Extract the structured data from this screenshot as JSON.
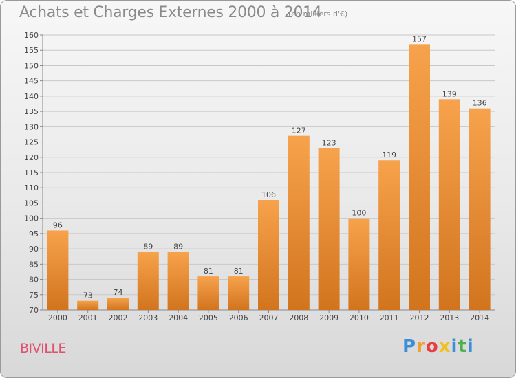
{
  "header": {
    "title": "Achats et Charges Externes 2000 à 2014",
    "unit": "(en milliers d'€)"
  },
  "footer": {
    "commune": "BIVILLE",
    "brand": "Proxiti",
    "brand_letters": [
      {
        "ch": "P",
        "color": "#3a8fd8"
      },
      {
        "ch": "r",
        "color": "#f0a030"
      },
      {
        "ch": "o",
        "color": "#e84040"
      },
      {
        "ch": "x",
        "color": "#f0c020"
      },
      {
        "ch": "i",
        "color": "#3a8fd8"
      },
      {
        "ch": "t",
        "color": "#50b050"
      },
      {
        "ch": "i",
        "color": "#3a8fd8"
      }
    ]
  },
  "colors": {
    "bar_light": "#f7a24c",
    "bar_dark": "#d2741e",
    "grid": "#c8c8c8",
    "axis": "#888888"
  },
  "chart_data": {
    "type": "bar",
    "title": "Achats et Charges Externes 2000 à 2014",
    "subtitle": "(en milliers d'€)",
    "categories": [
      "2000",
      "2001",
      "2002",
      "2003",
      "2004",
      "2005",
      "2006",
      "2007",
      "2008",
      "2009",
      "2010",
      "2011",
      "2012",
      "2013",
      "2014"
    ],
    "values": [
      96,
      73,
      74,
      89,
      89,
      81,
      81,
      106,
      127,
      123,
      100,
      119,
      157,
      139,
      136
    ],
    "ylim": [
      70,
      160
    ],
    "yticks": [
      70,
      75,
      80,
      85,
      90,
      95,
      100,
      105,
      110,
      115,
      120,
      125,
      130,
      135,
      140,
      145,
      150,
      155,
      160
    ],
    "grid": true,
    "data_labels": true
  }
}
